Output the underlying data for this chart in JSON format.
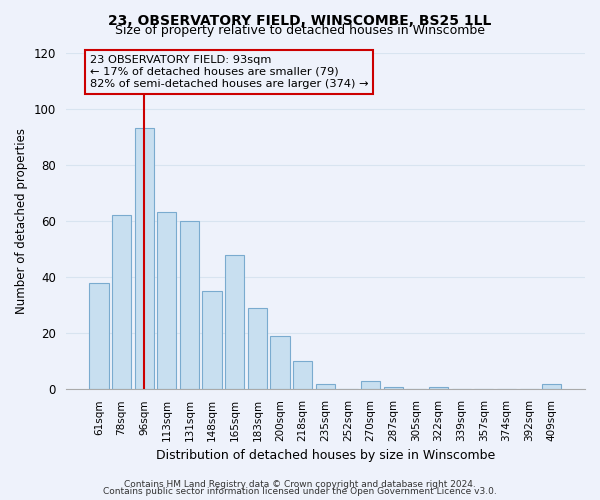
{
  "title": "23, OBSERVATORY FIELD, WINSCOMBE, BS25 1LL",
  "subtitle": "Size of property relative to detached houses in Winscombe",
  "xlabel": "Distribution of detached houses by size in Winscombe",
  "ylabel": "Number of detached properties",
  "bar_labels": [
    "61sqm",
    "78sqm",
    "96sqm",
    "113sqm",
    "131sqm",
    "148sqm",
    "165sqm",
    "183sqm",
    "200sqm",
    "218sqm",
    "235sqm",
    "252sqm",
    "270sqm",
    "287sqm",
    "305sqm",
    "322sqm",
    "339sqm",
    "357sqm",
    "374sqm",
    "392sqm",
    "409sqm"
  ],
  "bar_values": [
    38,
    62,
    93,
    63,
    60,
    35,
    48,
    29,
    19,
    10,
    2,
    0,
    3,
    1,
    0,
    1,
    0,
    0,
    0,
    0,
    2
  ],
  "bar_color": "#c8dff0",
  "bar_edge_color": "#7aabcf",
  "vline_x": 2,
  "vline_color": "#cc0000",
  "ylim": [
    0,
    120
  ],
  "yticks": [
    0,
    20,
    40,
    60,
    80,
    100,
    120
  ],
  "annotation_line1": "23 OBSERVATORY FIELD: 93sqm",
  "annotation_line2": "← 17% of detached houses are smaller (79)",
  "annotation_line3": "82% of semi-detached houses are larger (374) →",
  "footer_line1": "Contains HM Land Registry data © Crown copyright and database right 2024.",
  "footer_line2": "Contains public sector information licensed under the Open Government Licence v3.0.",
  "background_color": "#eef2fb",
  "grid_color": "#d8e4f0"
}
